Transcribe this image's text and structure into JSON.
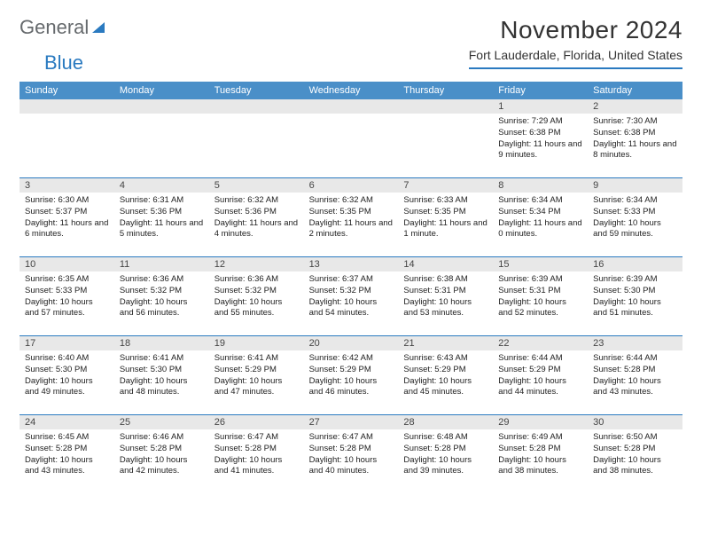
{
  "logo": {
    "word1": "General",
    "word2": "Blue"
  },
  "title": "November 2024",
  "location": "Fort Lauderdale, Florida, United States",
  "dayNames": [
    "Sunday",
    "Monday",
    "Tuesday",
    "Wednesday",
    "Thursday",
    "Friday",
    "Saturday"
  ],
  "header_bg": "#4a8fc8",
  "accent": "#2a7ac0",
  "strip_bg": "#e8e8e8",
  "weeks": [
    [
      {
        "n": "",
        "sunrise": "",
        "sunset": "",
        "daylight": ""
      },
      {
        "n": "",
        "sunrise": "",
        "sunset": "",
        "daylight": ""
      },
      {
        "n": "",
        "sunrise": "",
        "sunset": "",
        "daylight": ""
      },
      {
        "n": "",
        "sunrise": "",
        "sunset": "",
        "daylight": ""
      },
      {
        "n": "",
        "sunrise": "",
        "sunset": "",
        "daylight": ""
      },
      {
        "n": "1",
        "sunrise": "Sunrise: 7:29 AM",
        "sunset": "Sunset: 6:38 PM",
        "daylight": "Daylight: 11 hours and 9 minutes."
      },
      {
        "n": "2",
        "sunrise": "Sunrise: 7:30 AM",
        "sunset": "Sunset: 6:38 PM",
        "daylight": "Daylight: 11 hours and 8 minutes."
      }
    ],
    [
      {
        "n": "3",
        "sunrise": "Sunrise: 6:30 AM",
        "sunset": "Sunset: 5:37 PM",
        "daylight": "Daylight: 11 hours and 6 minutes."
      },
      {
        "n": "4",
        "sunrise": "Sunrise: 6:31 AM",
        "sunset": "Sunset: 5:36 PM",
        "daylight": "Daylight: 11 hours and 5 minutes."
      },
      {
        "n": "5",
        "sunrise": "Sunrise: 6:32 AM",
        "sunset": "Sunset: 5:36 PM",
        "daylight": "Daylight: 11 hours and 4 minutes."
      },
      {
        "n": "6",
        "sunrise": "Sunrise: 6:32 AM",
        "sunset": "Sunset: 5:35 PM",
        "daylight": "Daylight: 11 hours and 2 minutes."
      },
      {
        "n": "7",
        "sunrise": "Sunrise: 6:33 AM",
        "sunset": "Sunset: 5:35 PM",
        "daylight": "Daylight: 11 hours and 1 minute."
      },
      {
        "n": "8",
        "sunrise": "Sunrise: 6:34 AM",
        "sunset": "Sunset: 5:34 PM",
        "daylight": "Daylight: 11 hours and 0 minutes."
      },
      {
        "n": "9",
        "sunrise": "Sunrise: 6:34 AM",
        "sunset": "Sunset: 5:33 PM",
        "daylight": "Daylight: 10 hours and 59 minutes."
      }
    ],
    [
      {
        "n": "10",
        "sunrise": "Sunrise: 6:35 AM",
        "sunset": "Sunset: 5:33 PM",
        "daylight": "Daylight: 10 hours and 57 minutes."
      },
      {
        "n": "11",
        "sunrise": "Sunrise: 6:36 AM",
        "sunset": "Sunset: 5:32 PM",
        "daylight": "Daylight: 10 hours and 56 minutes."
      },
      {
        "n": "12",
        "sunrise": "Sunrise: 6:36 AM",
        "sunset": "Sunset: 5:32 PM",
        "daylight": "Daylight: 10 hours and 55 minutes."
      },
      {
        "n": "13",
        "sunrise": "Sunrise: 6:37 AM",
        "sunset": "Sunset: 5:32 PM",
        "daylight": "Daylight: 10 hours and 54 minutes."
      },
      {
        "n": "14",
        "sunrise": "Sunrise: 6:38 AM",
        "sunset": "Sunset: 5:31 PM",
        "daylight": "Daylight: 10 hours and 53 minutes."
      },
      {
        "n": "15",
        "sunrise": "Sunrise: 6:39 AM",
        "sunset": "Sunset: 5:31 PM",
        "daylight": "Daylight: 10 hours and 52 minutes."
      },
      {
        "n": "16",
        "sunrise": "Sunrise: 6:39 AM",
        "sunset": "Sunset: 5:30 PM",
        "daylight": "Daylight: 10 hours and 51 minutes."
      }
    ],
    [
      {
        "n": "17",
        "sunrise": "Sunrise: 6:40 AM",
        "sunset": "Sunset: 5:30 PM",
        "daylight": "Daylight: 10 hours and 49 minutes."
      },
      {
        "n": "18",
        "sunrise": "Sunrise: 6:41 AM",
        "sunset": "Sunset: 5:30 PM",
        "daylight": "Daylight: 10 hours and 48 minutes."
      },
      {
        "n": "19",
        "sunrise": "Sunrise: 6:41 AM",
        "sunset": "Sunset: 5:29 PM",
        "daylight": "Daylight: 10 hours and 47 minutes."
      },
      {
        "n": "20",
        "sunrise": "Sunrise: 6:42 AM",
        "sunset": "Sunset: 5:29 PM",
        "daylight": "Daylight: 10 hours and 46 minutes."
      },
      {
        "n": "21",
        "sunrise": "Sunrise: 6:43 AM",
        "sunset": "Sunset: 5:29 PM",
        "daylight": "Daylight: 10 hours and 45 minutes."
      },
      {
        "n": "22",
        "sunrise": "Sunrise: 6:44 AM",
        "sunset": "Sunset: 5:29 PM",
        "daylight": "Daylight: 10 hours and 44 minutes."
      },
      {
        "n": "23",
        "sunrise": "Sunrise: 6:44 AM",
        "sunset": "Sunset: 5:28 PM",
        "daylight": "Daylight: 10 hours and 43 minutes."
      }
    ],
    [
      {
        "n": "24",
        "sunrise": "Sunrise: 6:45 AM",
        "sunset": "Sunset: 5:28 PM",
        "daylight": "Daylight: 10 hours and 43 minutes."
      },
      {
        "n": "25",
        "sunrise": "Sunrise: 6:46 AM",
        "sunset": "Sunset: 5:28 PM",
        "daylight": "Daylight: 10 hours and 42 minutes."
      },
      {
        "n": "26",
        "sunrise": "Sunrise: 6:47 AM",
        "sunset": "Sunset: 5:28 PM",
        "daylight": "Daylight: 10 hours and 41 minutes."
      },
      {
        "n": "27",
        "sunrise": "Sunrise: 6:47 AM",
        "sunset": "Sunset: 5:28 PM",
        "daylight": "Daylight: 10 hours and 40 minutes."
      },
      {
        "n": "28",
        "sunrise": "Sunrise: 6:48 AM",
        "sunset": "Sunset: 5:28 PM",
        "daylight": "Daylight: 10 hours and 39 minutes."
      },
      {
        "n": "29",
        "sunrise": "Sunrise: 6:49 AM",
        "sunset": "Sunset: 5:28 PM",
        "daylight": "Daylight: 10 hours and 38 minutes."
      },
      {
        "n": "30",
        "sunrise": "Sunrise: 6:50 AM",
        "sunset": "Sunset: 5:28 PM",
        "daylight": "Daylight: 10 hours and 38 minutes."
      }
    ]
  ]
}
